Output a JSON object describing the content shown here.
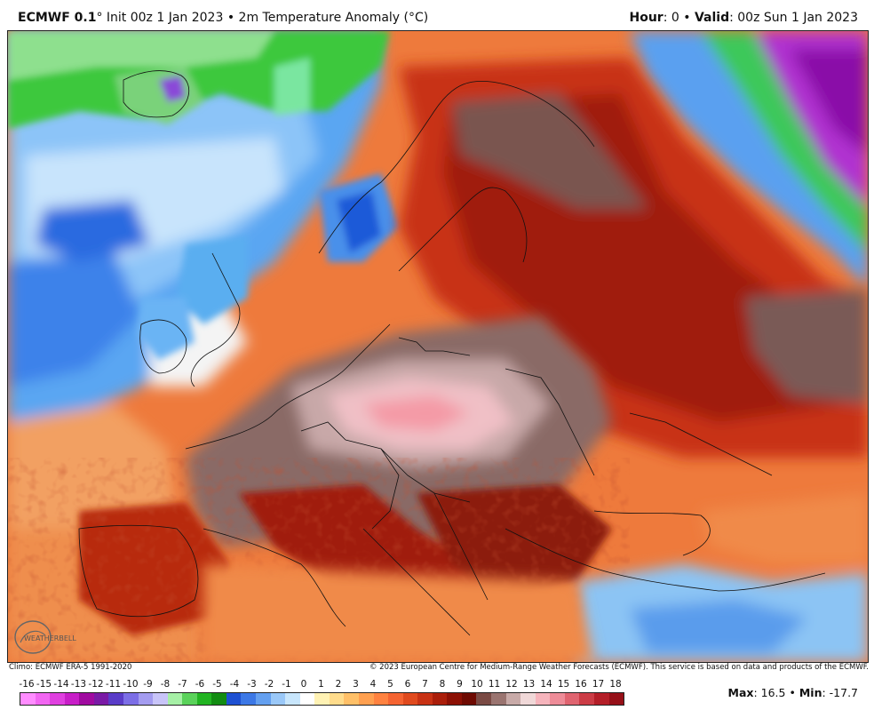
{
  "header": {
    "model": "ECMWF 0.1",
    "degree_mark": "°",
    "init_text": "Init 00z 1 Jan 2023",
    "sep": "•",
    "field_text": "2m Temperature Anomaly (°C)",
    "hour_label": "Hour",
    "hour_value": ": 0",
    "valid_label": "Valid",
    "valid_value": ": 00z Sun 1 Jan 2023"
  },
  "footer": {
    "climo": "Climo: ECMWF ERA-5 1991-2020",
    "copyright": "© 2023 European Centre for Medium-Range Weather Forecasts (ECMWF). This service is based on data and products of the ECMWF."
  },
  "colorbar": {
    "ticks": [
      "-16",
      "-15",
      "-14",
      "-13",
      "-12",
      "-11",
      "-10",
      "-9",
      "-8",
      "-7",
      "-6",
      "-5",
      "-4",
      "-3",
      "-2",
      "-1",
      "0",
      "1",
      "2",
      "3",
      "4",
      "5",
      "6",
      "7",
      "8",
      "9",
      "10",
      "11",
      "12",
      "13",
      "14",
      "15",
      "16",
      "17",
      "18"
    ],
    "colors": [
      "#ff8cff",
      "#f266f2",
      "#e040e0",
      "#c81ec8",
      "#a00aa0",
      "#7a1aa6",
      "#5a3cc8",
      "#7c6ee6",
      "#a49cf0",
      "#c8c4f8",
      "#a6f0a6",
      "#5ad25a",
      "#22b422",
      "#128c12",
      "#1e50d2",
      "#3c78e6",
      "#64a0f0",
      "#9ac8f8",
      "#c8e6fc",
      "#ffffff",
      "#fff2b4",
      "#ffdc8c",
      "#ffc068",
      "#ffa050",
      "#ff8240",
      "#f56432",
      "#e04a1e",
      "#c83214",
      "#aa1e0a",
      "#8c1004",
      "#6e0a02",
      "#7a4a44",
      "#9a7470",
      "#c8aaa8",
      "#f0d8d8",
      "#f6b4bc",
      "#ee8c98",
      "#e06470",
      "#cc3c46",
      "#b41e28",
      "#961018"
    ]
  },
  "stats": {
    "max_label": "Max",
    "max_value": ": 16.5",
    "min_label": "Min",
    "min_value": ": -17.7"
  },
  "map": {
    "type": "temperature-anomaly-map",
    "region": "Europe",
    "colors": {
      "ocean_warm": "#f08a4a",
      "warm": "#e8642a",
      "hot": "#c83214",
      "very_hot": "#8c1a0a",
      "extreme_brown": "#7a5a56",
      "extreme_pink": "#f0b8c0",
      "cool_blue": "#5aa0f0",
      "cold_blue": "#1e64dc",
      "pale_blue": "#c8e4fc",
      "green": "#22b422",
      "purple": "#a020c8"
    }
  },
  "logo": {
    "text": "WEATHERBELL"
  }
}
